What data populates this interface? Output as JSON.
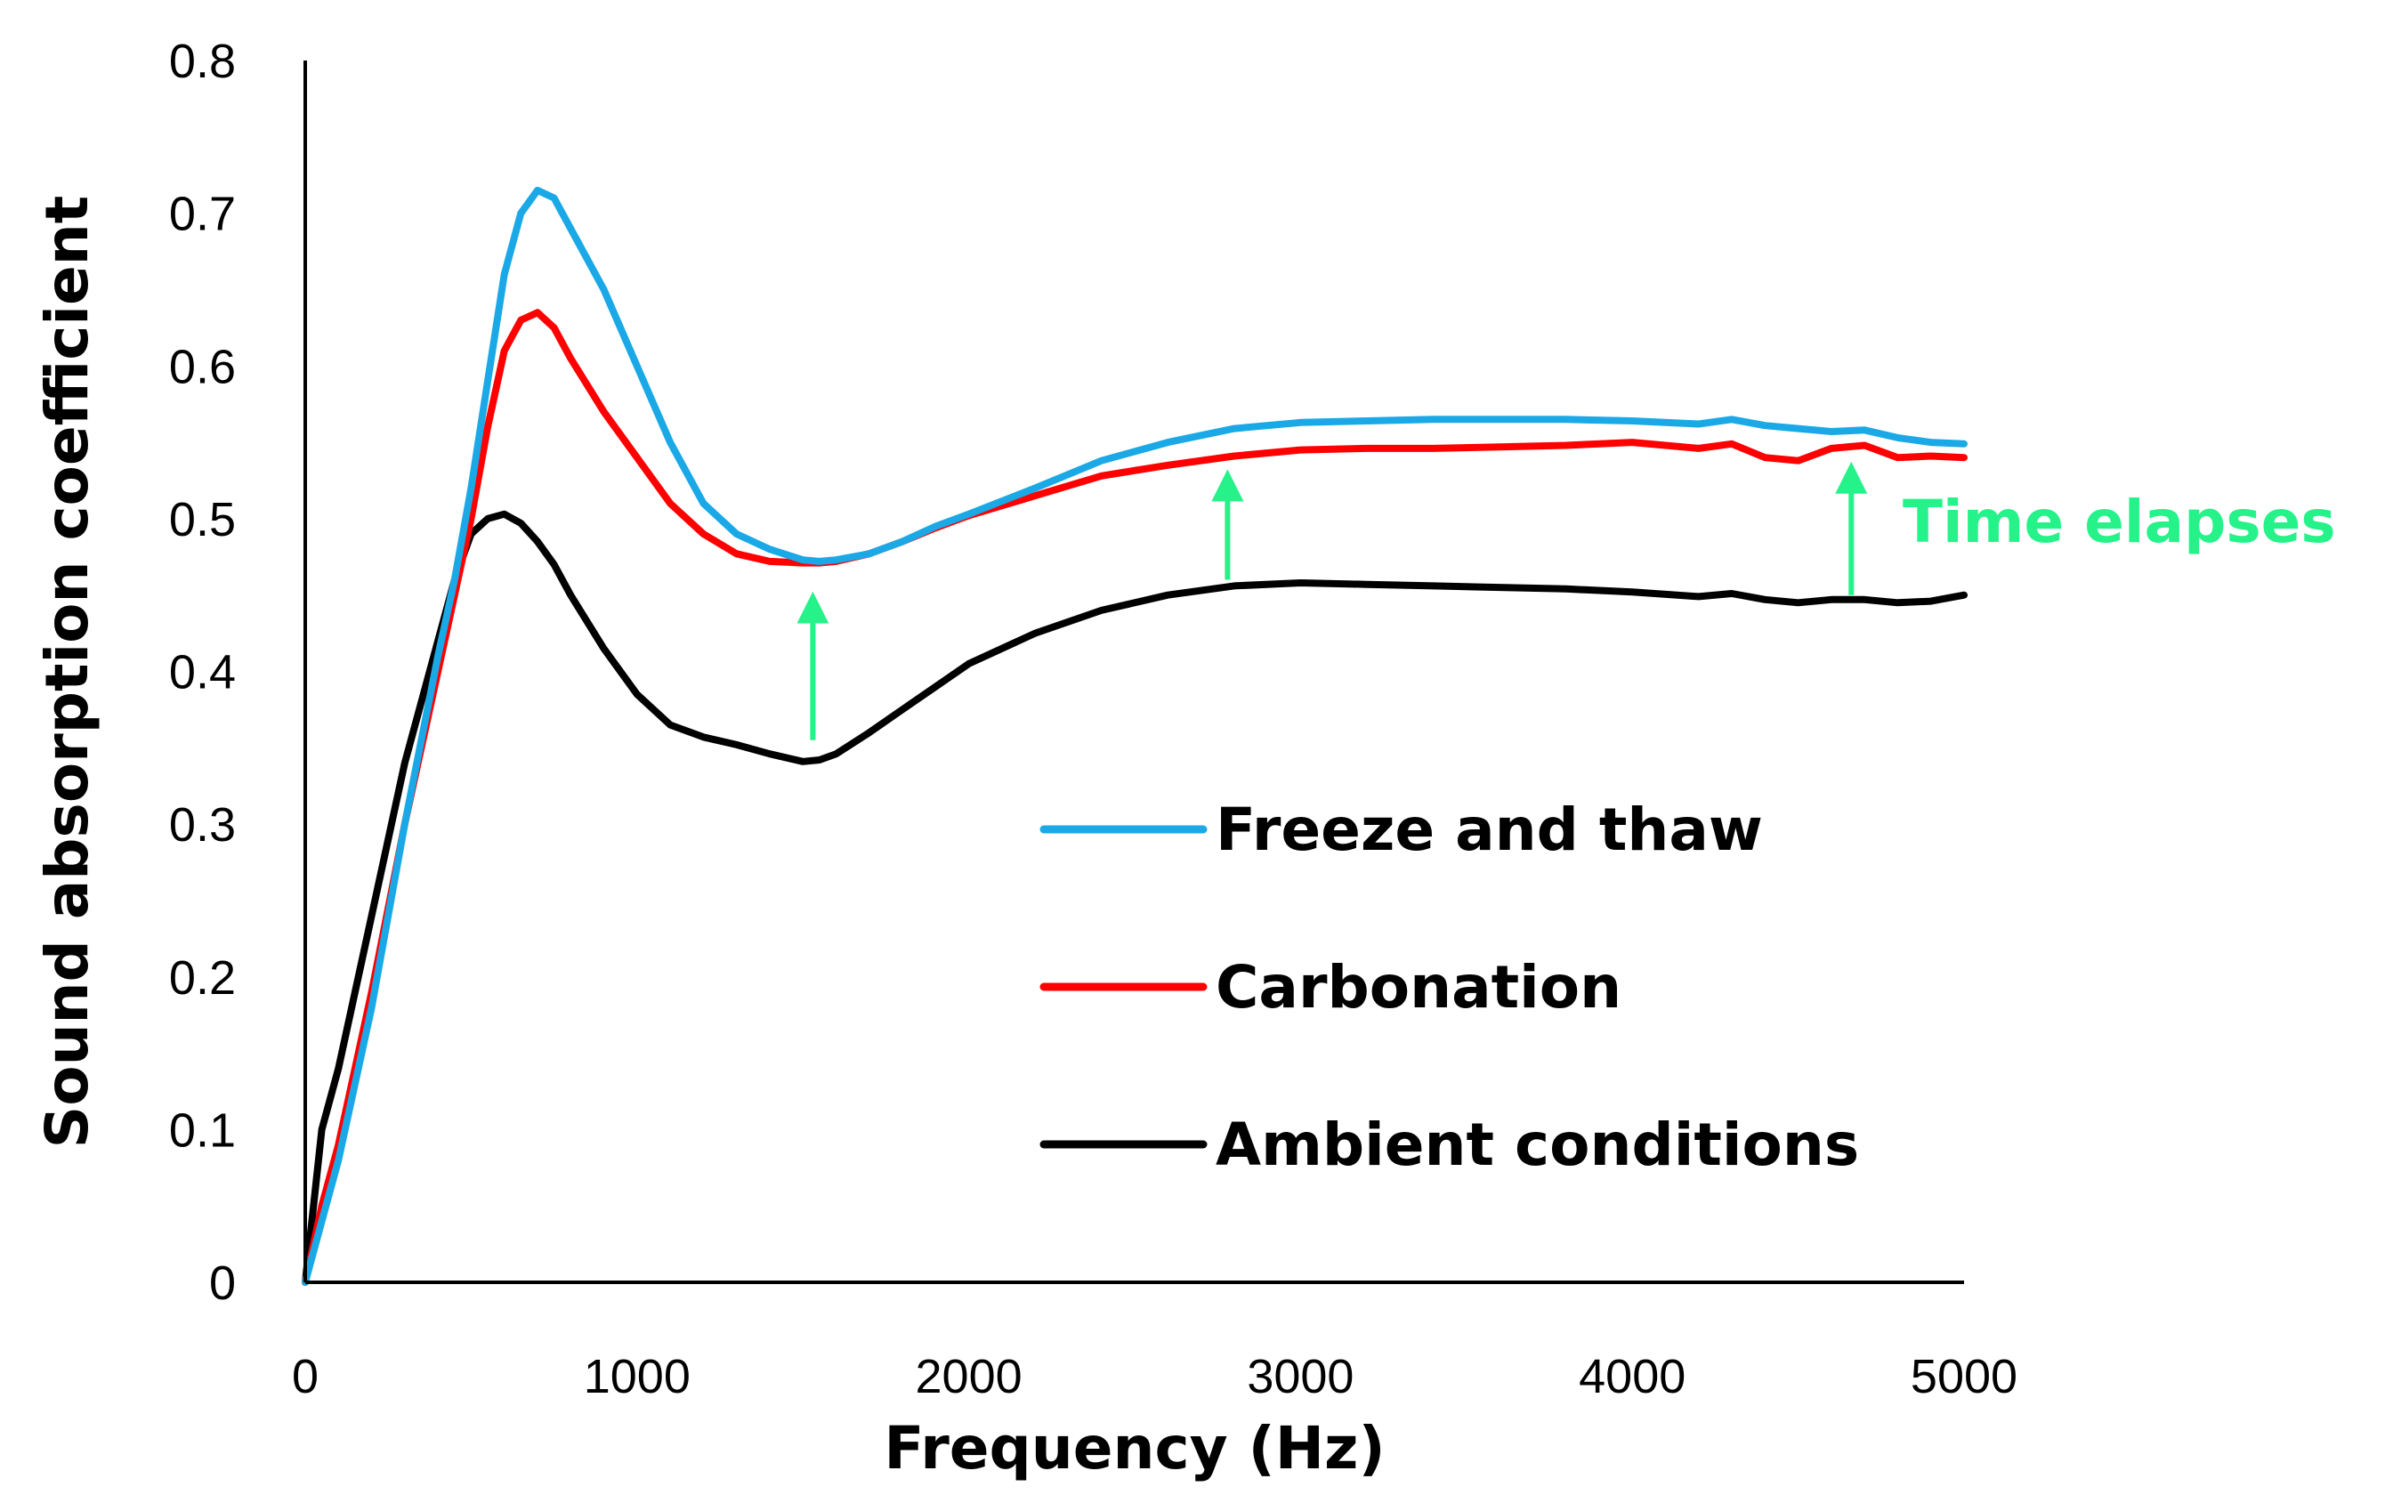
{
  "chart_data": {
    "type": "line",
    "title": "",
    "xlabel": "Frequency (Hz)",
    "ylabel": "Sound absorption coefficient",
    "xlim": [
      0,
      5000
    ],
    "ylim": [
      0,
      0.8
    ],
    "grid": false,
    "x_ticks": [
      0,
      1000,
      2000,
      3000,
      4000,
      5000
    ],
    "x_tick_labels": [
      "0",
      "1000",
      "2000",
      "3000",
      "4000",
      "5000"
    ],
    "y_ticks": [
      0,
      0.1,
      0.2,
      0.3,
      0.4,
      0.5,
      0.6,
      0.7,
      0.8
    ],
    "y_tick_labels": [
      "0",
      "0.1",
      "0.2",
      "0.3",
      "0.4",
      "0.5",
      "0.6",
      "0.7",
      "0.8"
    ],
    "x": [
      0,
      50,
      100,
      200,
      300,
      400,
      450,
      500,
      550,
      600,
      650,
      700,
      750,
      800,
      900,
      1000,
      1100,
      1200,
      1300,
      1400,
      1500,
      1550,
      1600,
      1700,
      1800,
      1900,
      2000,
      2200,
      2400,
      2600,
      2800,
      3000,
      3200,
      3400,
      3600,
      3800,
      4000,
      4200,
      4300,
      4400,
      4500,
      4600,
      4700,
      4800,
      4900,
      5000
    ],
    "series": [
      {
        "name": "Freeze and thaw",
        "color": "#1aa9e6",
        "values": [
          0.0,
          0.04,
          0.08,
          0.18,
          0.3,
          0.41,
          0.46,
          0.52,
          0.59,
          0.66,
          0.7,
          0.715,
          0.71,
          0.69,
          0.65,
          0.6,
          0.55,
          0.51,
          0.49,
          0.48,
          0.473,
          0.472,
          0.473,
          0.477,
          0.485,
          0.495,
          0.503,
          0.52,
          0.538,
          0.55,
          0.559,
          0.563,
          0.564,
          0.565,
          0.565,
          0.565,
          0.564,
          0.562,
          0.565,
          0.561,
          0.559,
          0.557,
          0.558,
          0.553,
          0.55,
          0.549
        ]
      },
      {
        "name": "Carbonation",
        "color": "#ff0000",
        "values": [
          0.0,
          0.05,
          0.09,
          0.19,
          0.3,
          0.4,
          0.45,
          0.5,
          0.56,
          0.61,
          0.63,
          0.635,
          0.625,
          0.605,
          0.57,
          0.54,
          0.51,
          0.49,
          0.477,
          0.472,
          0.471,
          0.471,
          0.472,
          0.477,
          0.485,
          0.494,
          0.502,
          0.515,
          0.528,
          0.535,
          0.541,
          0.545,
          0.546,
          0.546,
          0.547,
          0.548,
          0.55,
          0.546,
          0.549,
          0.54,
          0.538,
          0.546,
          0.548,
          0.54,
          0.541,
          0.54
        ]
      },
      {
        "name": "Ambient conditions",
        "color": "#000000",
        "values": [
          0.0,
          0.1,
          0.14,
          0.24,
          0.34,
          0.42,
          0.46,
          0.49,
          0.5,
          0.503,
          0.497,
          0.485,
          0.47,
          0.45,
          0.415,
          0.385,
          0.365,
          0.357,
          0.352,
          0.346,
          0.341,
          0.342,
          0.346,
          0.36,
          0.375,
          0.39,
          0.405,
          0.425,
          0.44,
          0.45,
          0.456,
          0.458,
          0.457,
          0.456,
          0.455,
          0.454,
          0.452,
          0.449,
          0.451,
          0.447,
          0.445,
          0.447,
          0.447,
          0.445,
          0.446,
          0.45
        ]
      }
    ],
    "legend": {
      "position": "center-right",
      "entries": [
        "Freeze and thaw",
        "Carbonation",
        "Ambient conditions"
      ]
    },
    "annotations": {
      "text": "Time elapses",
      "color": "#26f28a",
      "arrows": [
        {
          "x": 1530,
          "y_from": 0.355,
          "y_to": 0.45
        },
        {
          "x": 2780,
          "y_from": 0.46,
          "y_to": 0.53
        },
        {
          "x": 4660,
          "y_from": 0.45,
          "y_to": 0.535
        }
      ]
    }
  }
}
